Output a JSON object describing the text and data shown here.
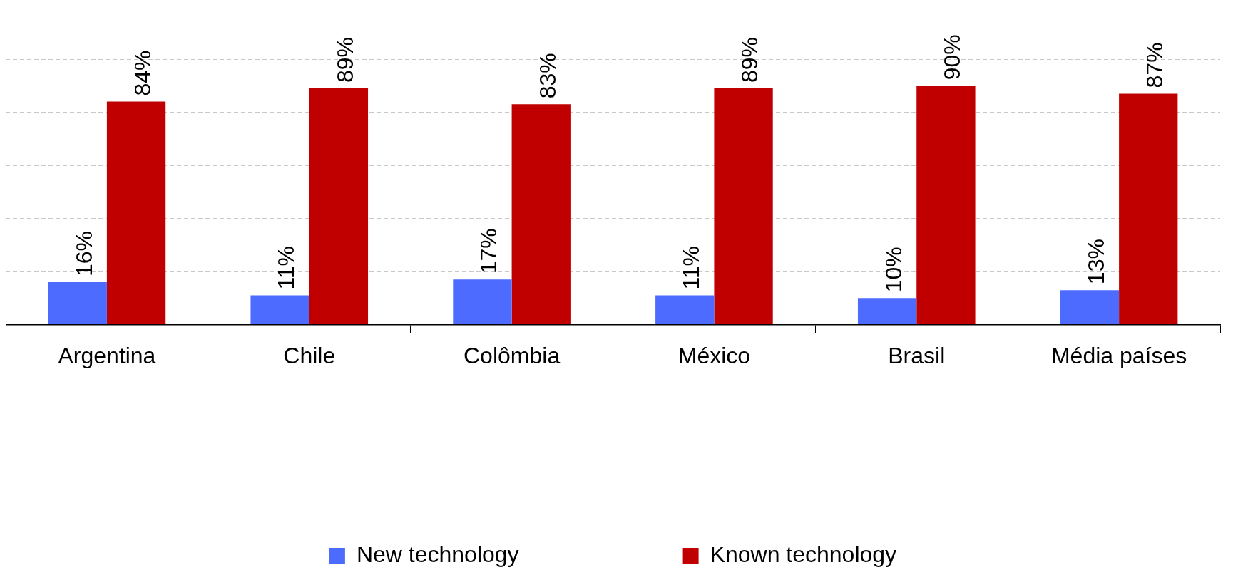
{
  "chart_data": {
    "type": "bar",
    "categories": [
      "Argentina",
      "Chile",
      "Colômbia",
      "México",
      "Brasil",
      "Média países"
    ],
    "series": [
      {
        "name": "New technology",
        "color": "#4d6bff",
        "values": [
          16,
          11,
          17,
          11,
          10,
          13
        ],
        "value_labels": [
          "16%",
          "11%",
          "17%",
          "11%",
          "10%",
          "13%"
        ]
      },
      {
        "name": "Known technology",
        "color": "#c00000",
        "values": [
          84,
          89,
          83,
          89,
          90,
          87
        ],
        "value_labels": [
          "84%",
          "89%",
          "83%",
          "89%",
          "90%",
          "87%"
        ]
      }
    ],
    "tick_labels": "x",
    "grid": "y",
    "legend": "bottom"
  }
}
